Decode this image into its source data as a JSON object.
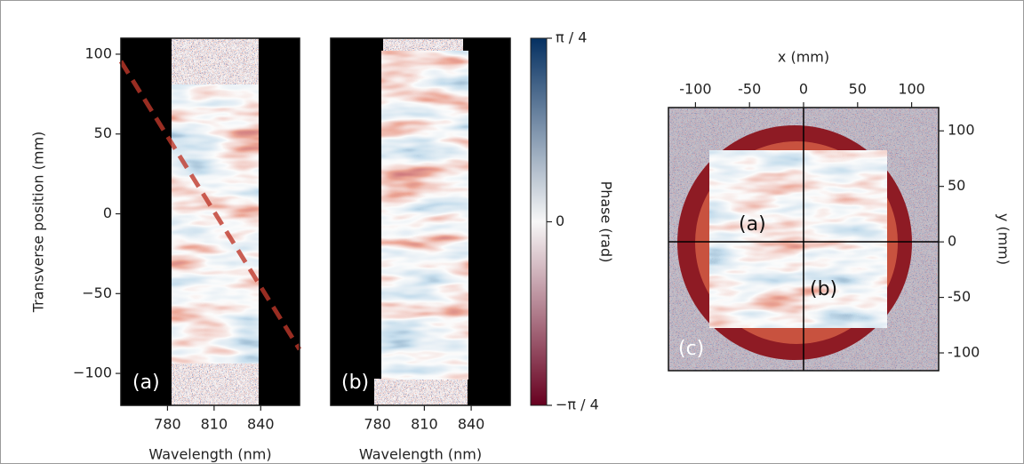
{
  "chart_data": [
    {
      "type": "image",
      "xlabel": "Wavelength (nm)",
      "ylabel": "Transverse position (mm)",
      "annotation": "(a)",
      "xlim": [
        750,
        865
      ],
      "xticks": [
        780,
        810,
        840
      ],
      "ylim": [
        -120,
        110
      ],
      "yticks": [
        {
          "value": -100,
          "label": "−100"
        },
        {
          "value": -50,
          "label": "−50"
        },
        0,
        50,
        100
      ]
    },
    {
      "type": "image",
      "xlabel": "Wavelength (nm)",
      "annotation": "(b)",
      "xlim": [
        750,
        865
      ],
      "xticks": [
        780,
        810,
        840
      ],
      "ylim": [
        -120,
        110
      ]
    },
    {
      "type": "colorbar",
      "label": "Phase (rad)",
      "ylim": [
        -0.785398,
        0.785398
      ],
      "yticks": [
        {
          "value": -0.785398,
          "label": "−π / 4"
        },
        0,
        {
          "value": 0.785398,
          "label": "π / 4"
        }
      ],
      "colors": [
        "#67001f",
        "#f7f7f7",
        "#053061"
      ]
    },
    {
      "type": "image",
      "xlabel": "x (mm)",
      "ylabel": "y (mm)",
      "annotation": "(c)",
      "xlim": [
        -125,
        125
      ],
      "xticks": [
        -100,
        -50,
        0,
        50,
        100
      ],
      "ylim": [
        -116,
        121
      ],
      "yticks": [
        -100,
        -50,
        0,
        50,
        100
      ],
      "markers": [
        "(a)",
        "(b)"
      ]
    }
  ]
}
